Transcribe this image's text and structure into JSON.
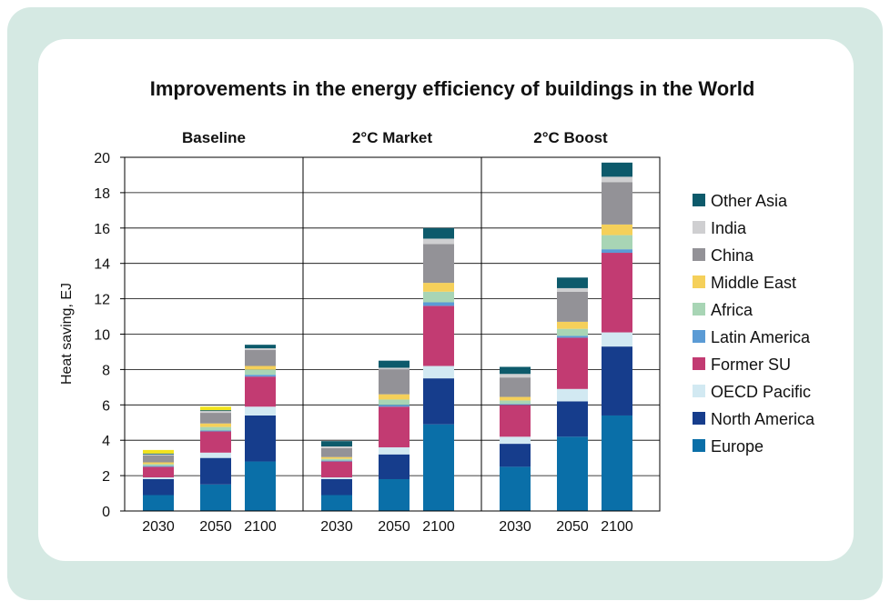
{
  "chart_data": {
    "type": "bar",
    "stacked": true,
    "title": "Improvements in the energy efficiency of buildings in the World",
    "ylabel": "Heat saving, EJ",
    "xlabel": "",
    "ylim": [
      0,
      20
    ],
    "yticks": [
      0,
      2,
      4,
      6,
      8,
      10,
      12,
      14,
      16,
      18,
      20
    ],
    "grid": true,
    "legend_position": "right",
    "panels": [
      {
        "title": "Baseline",
        "categories": [
          "2030",
          "2050",
          "2100"
        ]
      },
      {
        "title": "2°C Market",
        "categories": [
          "2030",
          "2050",
          "2100"
        ]
      },
      {
        "title": "2°C Boost",
        "categories": [
          "2030",
          "2050",
          "2100"
        ]
      }
    ],
    "series": [
      {
        "name": "Europe",
        "color": "#0a6fa8",
        "values": [
          [
            0.9,
            1.5,
            2.8
          ],
          [
            0.9,
            1.8,
            4.9
          ],
          [
            2.5,
            4.2,
            5.4
          ]
        ]
      },
      {
        "name": "North America",
        "color": "#163d8c",
        "values": [
          [
            0.9,
            1.5,
            2.6
          ],
          [
            0.9,
            1.4,
            2.6
          ],
          [
            1.3,
            2.0,
            3.9
          ]
        ]
      },
      {
        "name": "OECD Pacific",
        "color": "#d2e9f2",
        "values": [
          [
            0.1,
            0.3,
            0.5
          ],
          [
            0.1,
            0.4,
            0.7
          ],
          [
            0.4,
            0.7,
            0.8
          ]
        ]
      },
      {
        "name": "Former SU",
        "color": "#c23b72",
        "values": [
          [
            0.6,
            1.2,
            1.7
          ],
          [
            0.9,
            2.3,
            3.4
          ],
          [
            1.8,
            2.9,
            4.5
          ]
        ]
      },
      {
        "name": "Latin America",
        "color": "#5b9bd5",
        "values": [
          [
            0.05,
            0.05,
            0.1
          ],
          [
            0.05,
            0.1,
            0.2
          ],
          [
            0.05,
            0.1,
            0.2
          ]
        ]
      },
      {
        "name": "Africa",
        "color": "#a8d5b5",
        "values": [
          [
            0.1,
            0.2,
            0.3
          ],
          [
            0.1,
            0.3,
            0.6
          ],
          [
            0.2,
            0.4,
            0.8
          ]
        ]
      },
      {
        "name": "Middle East",
        "color": "#f5d05a",
        "values": [
          [
            0.1,
            0.2,
            0.2
          ],
          [
            0.1,
            0.3,
            0.5
          ],
          [
            0.2,
            0.4,
            0.6
          ]
        ]
      },
      {
        "name": "China",
        "color": "#939297",
        "values": [
          [
            0.4,
            0.6,
            0.9
          ],
          [
            0.5,
            1.4,
            2.2
          ],
          [
            1.1,
            1.7,
            2.4
          ]
        ]
      },
      {
        "name": "India",
        "color": "#cfcfd1",
        "values": [
          [
            0.05,
            0.1,
            0.1
          ],
          [
            0.1,
            0.1,
            0.3
          ],
          [
            0.2,
            0.2,
            0.3
          ]
        ]
      },
      {
        "name": "Other Asia",
        "color": "#0d5a6b",
        "values": [
          [
            0.05,
            0.05,
            0.2
          ],
          [
            0.3,
            0.4,
            0.6
          ],
          [
            0.4,
            0.6,
            0.8
          ]
        ]
      }
    ],
    "extra_top": {
      "color": "#f2e31c",
      "values": [
        [
          0.2,
          0.2,
          0
        ],
        [
          0,
          0,
          0
        ],
        [
          0,
          0,
          0
        ]
      ]
    }
  }
}
